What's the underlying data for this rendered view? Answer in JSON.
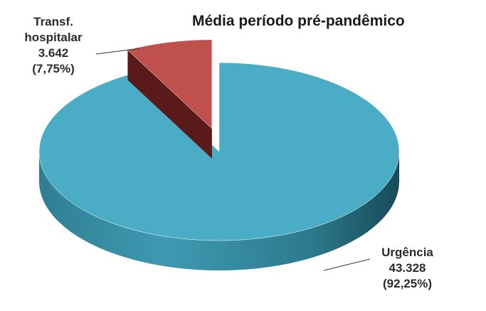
{
  "chart_data": {
    "type": "pie3d",
    "title": "Média período pré-pandêmico",
    "categories": [
      "Transf. hospitalar",
      "Urgência"
    ],
    "values": [
      3642,
      43328
    ],
    "value_labels": [
      "3.642",
      "43.328"
    ],
    "percentages": [
      7.75,
      92.25
    ],
    "percentage_labels": [
      "(7,75%)",
      "(92,25%)"
    ],
    "colors": [
      "#c0504d",
      "#4bacc6"
    ]
  }
}
